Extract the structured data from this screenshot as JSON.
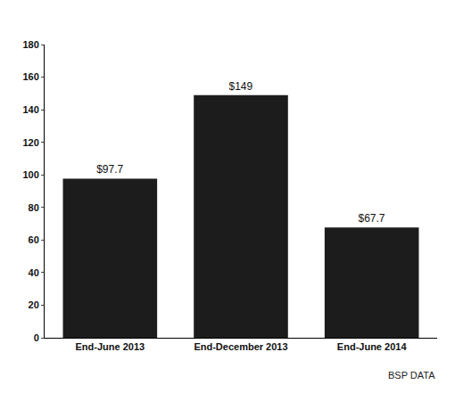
{
  "chart_data": {
    "type": "bar",
    "categories": [
      "End-June 2013",
      "End-December 2013",
      "End-June 2014"
    ],
    "values": [
      97.7,
      149,
      67.7
    ],
    "value_labels": [
      "$97.7",
      "$149",
      "$67.7"
    ],
    "data_labels": true,
    "color": "#1c1c1c",
    "ylim": [
      0,
      180
    ],
    "yticks": [
      0,
      20,
      40,
      60,
      80,
      100,
      120,
      140,
      160,
      180
    ],
    "grid": false,
    "annotations": [
      "BSP DATA"
    ]
  }
}
